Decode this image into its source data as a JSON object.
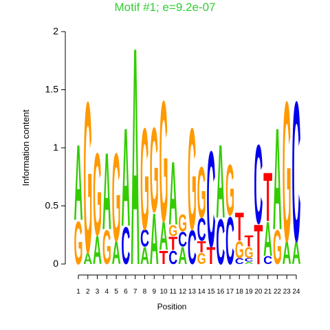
{
  "chart_data": {
    "type": "logo",
    "title": "Motif #1; e=9.2e-07",
    "title_color": "#33cc33",
    "xlabel": "Position",
    "ylabel": "Information content",
    "categories": [
      1,
      2,
      3,
      4,
      5,
      6,
      7,
      8,
      9,
      10,
      11,
      12,
      13,
      14,
      15,
      16,
      17,
      18,
      19,
      20,
      21,
      22,
      23,
      24
    ],
    "ylim": [
      0,
      2
    ],
    "yticks": [
      0,
      0.5,
      1,
      1.5,
      2
    ],
    "colors": {
      "A": "#33cc00",
      "C": "#0000ee",
      "G": "#ff9900",
      "T": "#ff0000"
    },
    "stacks": [
      {
        "letters": [
          "G",
          "A"
        ],
        "values": [
          0.38,
          0.67
        ]
      },
      {
        "letters": [
          "A",
          "G"
        ],
        "values": [
          0.1,
          1.34
        ]
      },
      {
        "letters": [
          "A",
          "G"
        ],
        "values": [
          0.25,
          0.73
        ]
      },
      {
        "letters": [
          "G",
          "A"
        ],
        "values": [
          0.3,
          0.68
        ]
      },
      {
        "letters": [
          "A",
          "G"
        ],
        "values": [
          0.2,
          0.78
        ]
      },
      {
        "letters": [
          "C",
          "A"
        ],
        "values": [
          0.33,
          0.87
        ]
      },
      {
        "letters": [
          "A"
        ],
        "values": [
          1.93
        ]
      },
      {
        "letters": [
          "A",
          "C",
          "G"
        ],
        "values": [
          0.15,
          0.15,
          0.9
        ]
      },
      {
        "letters": [
          "A",
          "G"
        ],
        "values": [
          0.45,
          0.75
        ]
      },
      {
        "letters": [
          "T",
          "A",
          "G"
        ],
        "values": [
          0.12,
          0.25,
          1.07
        ]
      },
      {
        "letters": [
          "C",
          "T",
          "G",
          "A"
        ],
        "values": [
          0.12,
          0.12,
          0.1,
          0.56
        ]
      },
      {
        "letters": [
          "A",
          "C",
          "G"
        ],
        "values": [
          0.15,
          0.13,
          0.15
        ]
      },
      {
        "letters": [
          "C",
          "G"
        ],
        "values": [
          0.3,
          0.9
        ]
      },
      {
        "letters": [
          "G",
          "T",
          "C",
          "G"
        ],
        "values": [
          0.1,
          0.1,
          0.2,
          0.45
        ]
      },
      {
        "letters": [
          "T",
          "C"
        ],
        "values": [
          0.15,
          0.85
        ]
      },
      {
        "letters": [
          "C",
          "A"
        ],
        "values": [
          0.4,
          0.65
        ]
      },
      {
        "letters": [
          "C",
          "G"
        ],
        "values": [
          0.42,
          0.45
        ]
      },
      {
        "letters": [
          "C",
          "G",
          "T"
        ],
        "values": [
          0.05,
          0.15,
          0.25
        ]
      },
      {
        "letters": [
          "A",
          "C",
          "G",
          "T"
        ],
        "values": [
          0.02,
          0.03,
          0.1,
          0.1
        ]
      },
      {
        "letters": [
          "T",
          "C"
        ],
        "values": [
          0.35,
          0.7
        ]
      },
      {
        "letters": [
          "C",
          "A",
          "T"
        ],
        "values": [
          0.07,
          0.3,
          0.43
        ]
      },
      {
        "letters": [
          "G",
          "A"
        ],
        "values": [
          0.3,
          0.9
        ]
      },
      {
        "letters": [
          "A",
          "G"
        ],
        "values": [
          0.2,
          1.24
        ]
      },
      {
        "letters": [
          "A",
          "C"
        ],
        "values": [
          0.2,
          1.24
        ]
      }
    ]
  }
}
